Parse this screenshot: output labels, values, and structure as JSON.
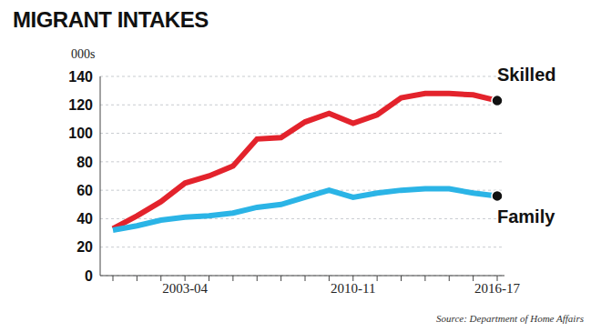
{
  "chart_data": {
    "type": "line",
    "title": "MIGRANT INTAKES",
    "ylabel": "000s",
    "source": "Source: Department of Home Affairs",
    "categories": [
      null,
      null,
      null,
      "2003-04",
      null,
      null,
      null,
      null,
      null,
      null,
      "2010-11",
      null,
      null,
      null,
      null,
      null,
      "2016-17"
    ],
    "series": [
      {
        "name": "Skilled",
        "color": "#e3232c",
        "values": [
          33,
          42,
          52,
          65,
          70,
          77,
          96,
          97,
          108,
          114,
          107,
          113,
          125,
          128,
          128,
          127,
          123
        ]
      },
      {
        "name": "Family",
        "color": "#2bb4e6",
        "values": [
          32,
          35,
          39,
          41,
          42,
          44,
          48,
          50,
          55,
          60,
          55,
          58,
          60,
          61,
          61,
          58,
          56
        ]
      }
    ],
    "ylim": [
      0,
      140
    ],
    "yticks": [
      0,
      20,
      40,
      60,
      80,
      100,
      120,
      140
    ],
    "grid": true
  }
}
